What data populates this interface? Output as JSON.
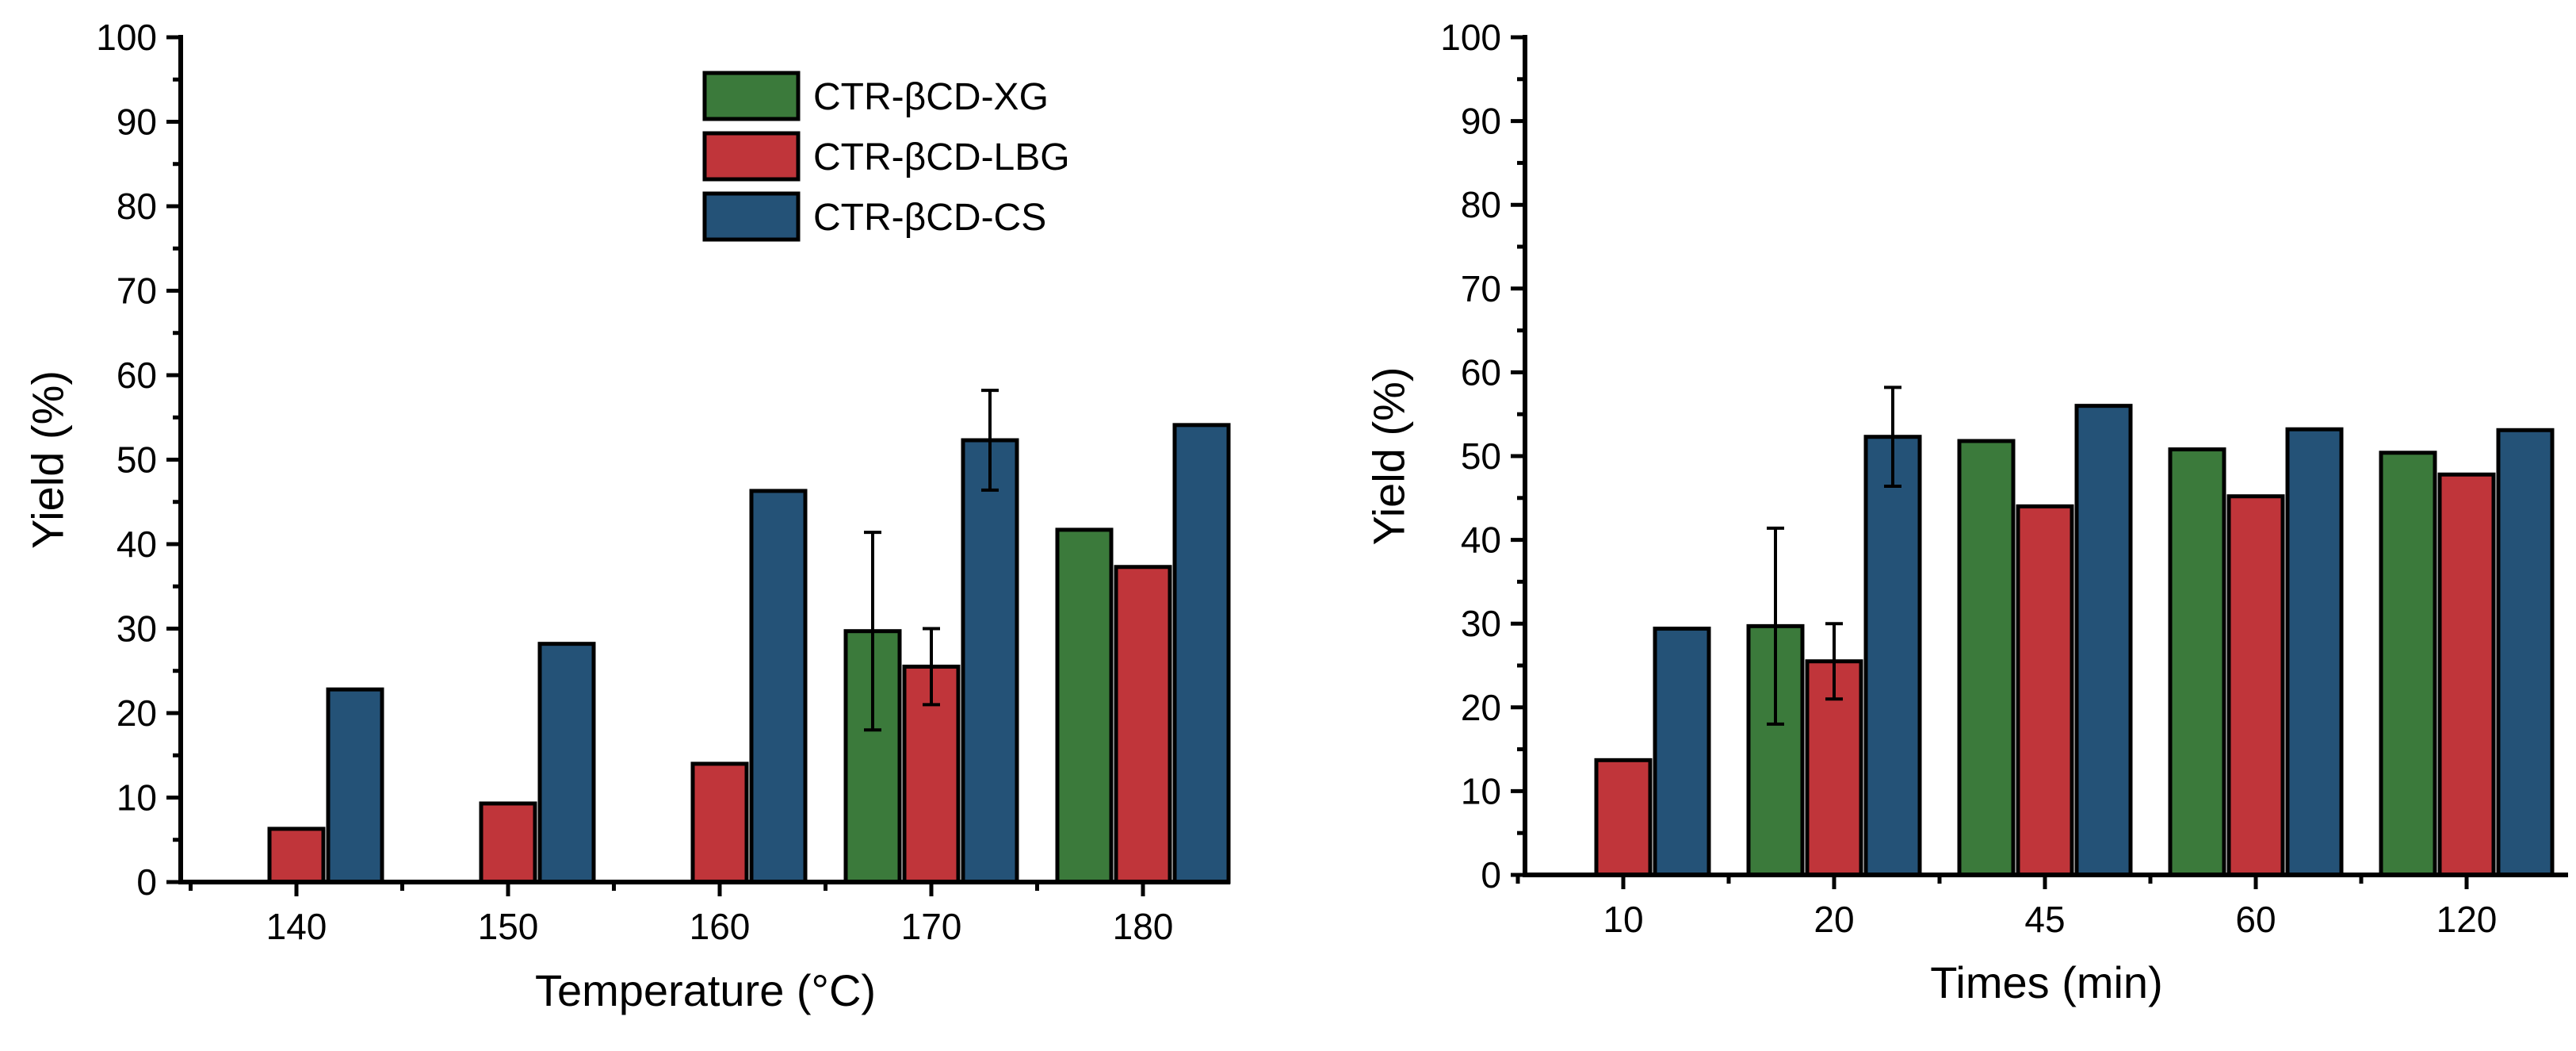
{
  "colors": {
    "CTR-βCD-XG": "#3b7a3b",
    "CTR-βCD-LBG": "#c0353a",
    "CTR-βCD-CS": "#245277"
  },
  "legend": [
    "CTR-βCD-XG",
    "CTR-βCD-LBG",
    "CTR-βCD-CS"
  ],
  "chart_data": [
    {
      "type": "bar",
      "xlabel": "Temperature (°C)",
      "ylabel": "Yield (%)",
      "ylim": [
        0,
        100
      ],
      "yticks": [
        0,
        10,
        20,
        30,
        40,
        50,
        60,
        70,
        80,
        90,
        100
      ],
      "categories": [
        "140",
        "150",
        "160",
        "170",
        "180"
      ],
      "series": [
        {
          "name": "CTR-βCD-XG",
          "values": [
            null,
            null,
            null,
            29.7,
            41.7
          ],
          "errors": [
            null,
            null,
            null,
            11.7,
            null
          ]
        },
        {
          "name": "CTR-βCD-LBG",
          "values": [
            6.3,
            9.3,
            14.0,
            25.5,
            37.3
          ],
          "errors": [
            null,
            null,
            null,
            4.5,
            null
          ]
        },
        {
          "name": "CTR-βCD-CS",
          "values": [
            22.8,
            28.2,
            46.3,
            52.3,
            54.1
          ],
          "errors": [
            null,
            null,
            null,
            5.9,
            null
          ]
        }
      ],
      "legend_position": "top-center"
    },
    {
      "type": "bar",
      "xlabel": "Times (min)",
      "ylabel": "Yield (%)",
      "ylim": [
        0,
        100
      ],
      "yticks": [
        0,
        10,
        20,
        30,
        40,
        50,
        60,
        70,
        80,
        90,
        100
      ],
      "categories": [
        "10",
        "20",
        "45",
        "60",
        "120"
      ],
      "series": [
        {
          "name": "CTR-βCD-XG",
          "values": [
            null,
            29.7,
            51.8,
            50.8,
            50.4
          ],
          "errors": [
            null,
            11.7,
            null,
            null,
            null
          ]
        },
        {
          "name": "CTR-βCD-LBG",
          "values": [
            13.7,
            25.5,
            44.0,
            45.2,
            47.8
          ],
          "errors": [
            null,
            4.5,
            null,
            null,
            null
          ]
        },
        {
          "name": "CTR-βCD-CS",
          "values": [
            29.4,
            52.3,
            56.0,
            53.2,
            53.1
          ],
          "errors": [
            null,
            5.9,
            null,
            null,
            null
          ]
        }
      ]
    }
  ]
}
